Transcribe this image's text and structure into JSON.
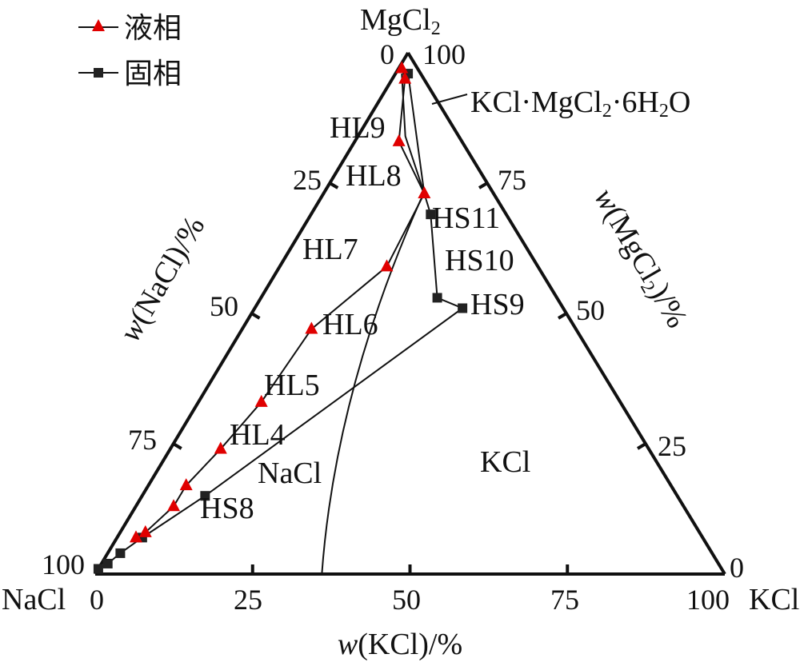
{
  "diagram": {
    "type": "ternary",
    "vertices": {
      "top": "MgCl",
      "top_sub": "2",
      "left": "NaCl",
      "right": "KCl"
    },
    "axis_titles": {
      "left_prefix": "w",
      "left_rest": "(NaCl)/%",
      "right_prefix": "w",
      "right_rest": "(MgCl",
      "right_sub": "2",
      "right_end": ")/%",
      "bottom_prefix": "w",
      "bottom_rest": "(KCl)/%"
    },
    "ticks": {
      "bottom": [
        "0",
        "25",
        "50",
        "75",
        "100"
      ],
      "left": [
        "0",
        "25",
        "50",
        "75",
        "100"
      ],
      "right": [
        "0",
        "25",
        "50",
        "75",
        "100"
      ]
    },
    "legend": [
      {
        "label": "液相",
        "marker": "triangle",
        "color": "#e00000"
      },
      {
        "label": "固相",
        "marker": "square",
        "color": "#222222"
      }
    ],
    "region_labels": {
      "nacl": "NaCl",
      "kcl": "KCl"
    },
    "carnallite": {
      "pre": "KCl·MgCl",
      "sub1": "2",
      "mid": "·6H",
      "sub2": "2",
      "post": "O"
    },
    "liquid_points": [
      {
        "id": "p0",
        "label": "",
        "mg": 97,
        "k": 0.5
      },
      {
        "id": "p1",
        "label": "",
        "mg": 95,
        "k": 2
      },
      {
        "id": "HL9",
        "label": "HL9",
        "mg": 83,
        "k": 7
      },
      {
        "id": "HL8",
        "label": "HL8",
        "mg": 73,
        "k": 16
      },
      {
        "id": "HL7",
        "label": "HL7",
        "mg": 59,
        "k": 17
      },
      {
        "id": "HL6",
        "label": "HL6",
        "mg": 47,
        "k": 11
      },
      {
        "id": "HL5",
        "label": "HL5",
        "mg": 33,
        "k": 10
      },
      {
        "id": "HL4",
        "label": "HL4",
        "mg": 24,
        "k": 8
      },
      {
        "id": "p8",
        "label": "",
        "mg": 17,
        "k": 6
      },
      {
        "id": "p9",
        "label": "",
        "mg": 13,
        "k": 6
      },
      {
        "id": "p10",
        "label": "",
        "mg": 8,
        "k": 4
      },
      {
        "id": "p11",
        "label": "",
        "mg": 7,
        "k": 3
      }
    ],
    "solid_points": [
      {
        "id": "s0",
        "label": "",
        "mg": 96,
        "k": 2
      },
      {
        "id": "HS11",
        "label": "HS11",
        "mg": 69,
        "k": 19
      },
      {
        "id": "HS10",
        "label": "HS10",
        "mg": 53,
        "k": 28
      },
      {
        "id": "HS9",
        "label": "HS9",
        "mg": 51,
        "k": 33
      },
      {
        "id": "HS8",
        "label": "HS8",
        "mg": 15,
        "k": 10
      },
      {
        "id": "s5",
        "label": "",
        "mg": 7,
        "k": 4
      },
      {
        "id": "s6",
        "label": "",
        "mg": 4,
        "k": 2
      },
      {
        "id": "s7",
        "label": "",
        "mg": 2,
        "k": 1
      },
      {
        "id": "s8",
        "label": "",
        "mg": 1,
        "k": 0
      }
    ]
  }
}
